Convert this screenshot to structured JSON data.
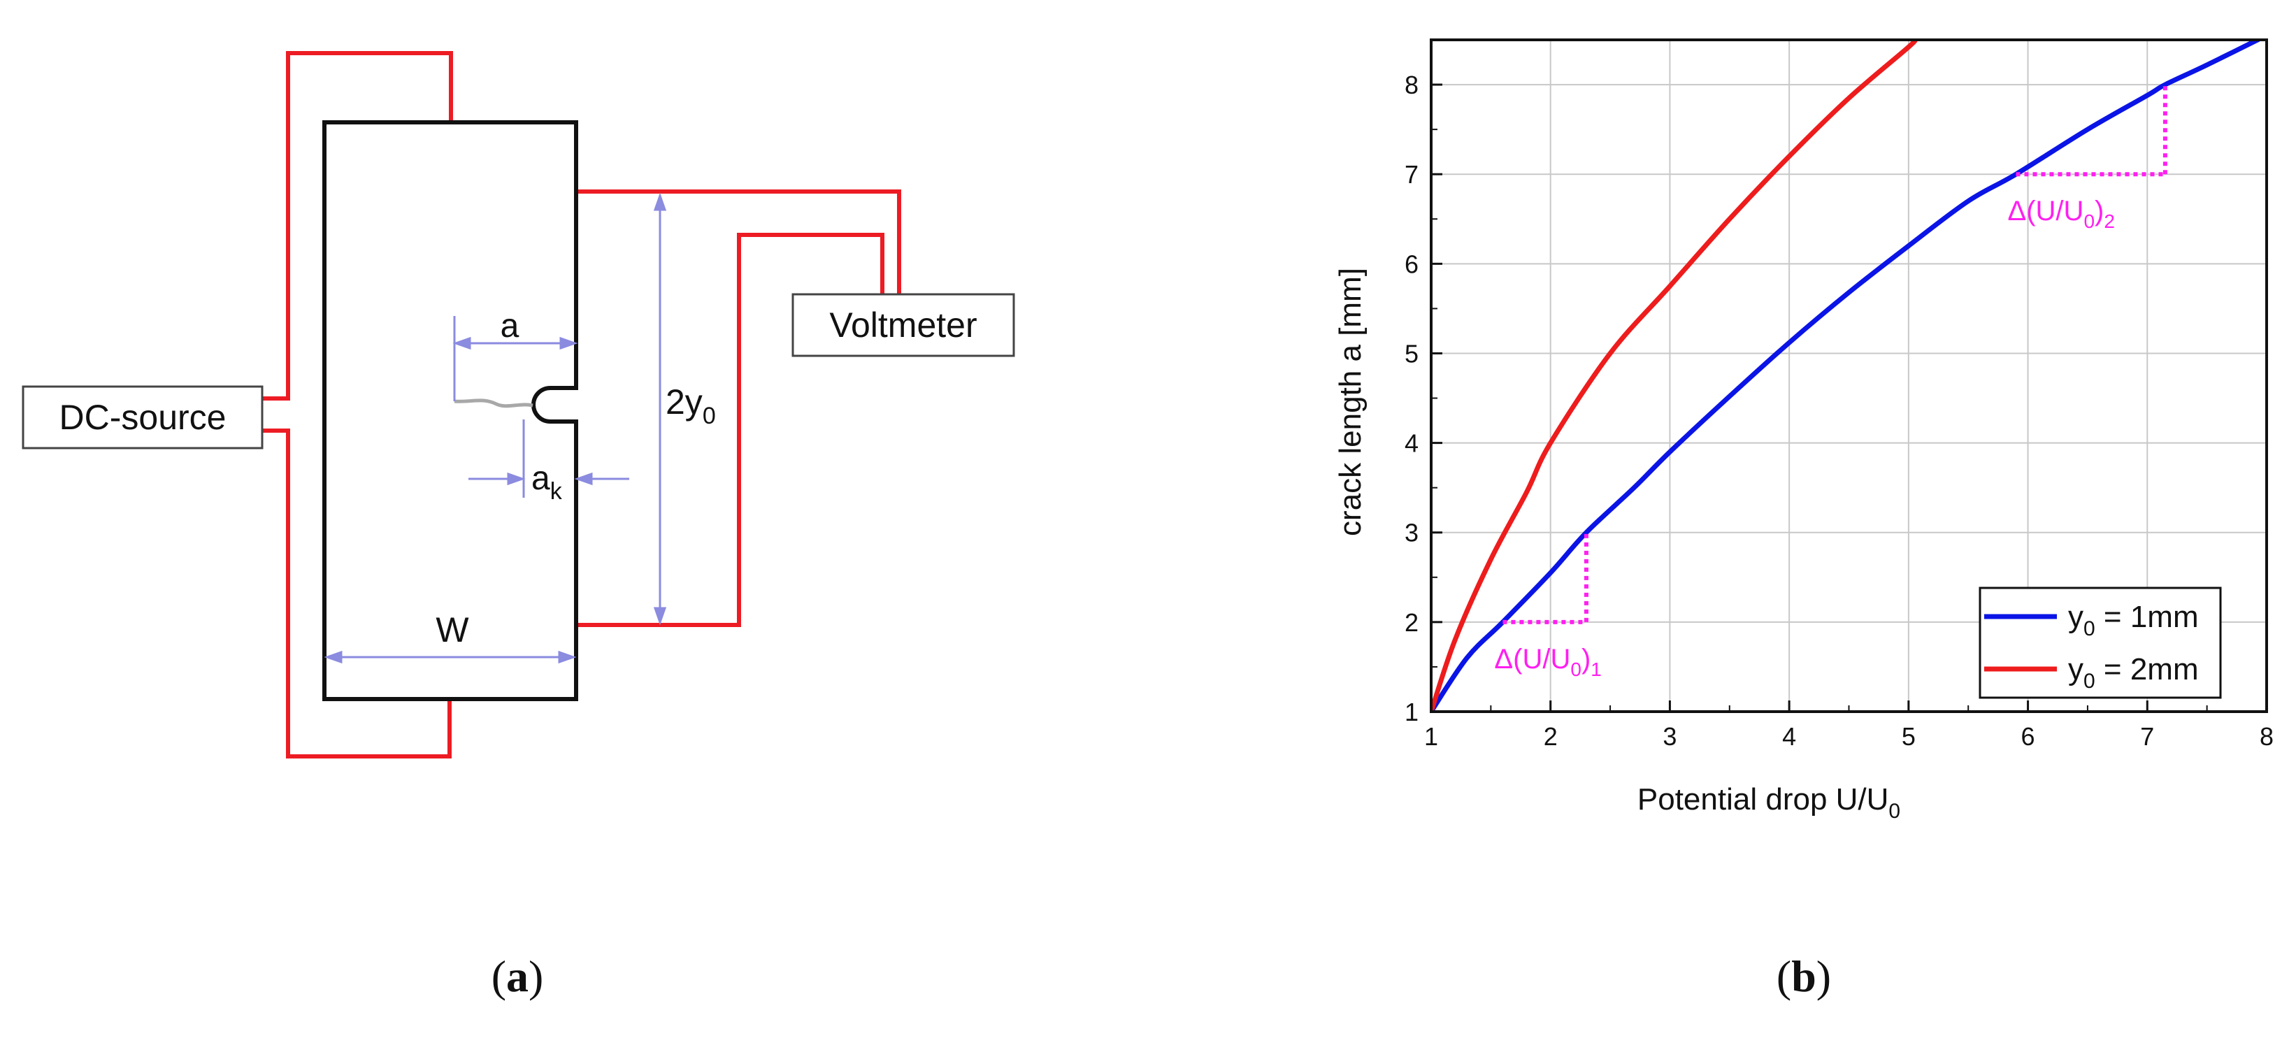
{
  "colors": {
    "wire": "#ed1c24",
    "dimension": "#8b8be0",
    "crack": "#a8a8a8",
    "blue_series": "#0a14e6",
    "red_series": "#ee1c1c",
    "delta_marker": "#ff1ff0",
    "grid": "#c8c8c8"
  },
  "panel_a": {
    "caption_open": "(",
    "caption_letter": "a",
    "caption_close": ")",
    "dc_source_label": "DC-source",
    "voltmeter_label": "Voltmeter",
    "crack_length_label": "a",
    "notch_depth_label": "a",
    "notch_depth_sub": "k",
    "probe_spacing_label": "2y",
    "probe_spacing_sub": "0",
    "width_label": "W"
  },
  "panel_b": {
    "caption_open": "(",
    "caption_letter": "b",
    "caption_close": ")"
  },
  "chart_data": {
    "type": "line",
    "xlabel": "Potential drop U/U",
    "xlabel_sub": "0",
    "ylabel": "crack length a [mm]",
    "xlim": [
      1,
      8
    ],
    "ylim": [
      1,
      8.5
    ],
    "grid": true,
    "legend_position": "bottom-right",
    "x_ticks": [
      1,
      2,
      3,
      4,
      5,
      6,
      7,
      8
    ],
    "y_ticks": [
      1,
      2,
      3,
      4,
      5,
      6,
      7,
      8
    ],
    "series": [
      {
        "name": "y0 = 1mm",
        "legend_prefix": "y",
        "legend_sub": "0",
        "legend_suffix": " = 1mm",
        "color": "#0a14e6",
        "x": [
          1.0,
          1.3,
          1.6,
          2.0,
          2.3,
          2.7,
          3.0,
          3.5,
          4.0,
          4.5,
          5.0,
          5.5,
          5.9,
          6.5,
          7.0,
          7.15,
          7.5,
          8.0
        ],
        "y": [
          1.0,
          1.6,
          2.0,
          2.55,
          3.0,
          3.5,
          3.9,
          4.52,
          5.12,
          5.68,
          6.2,
          6.7,
          7.0,
          7.5,
          7.88,
          8.0,
          8.22,
          8.55
        ]
      },
      {
        "name": "y0 = 2mm",
        "legend_prefix": "y",
        "legend_sub": "0",
        "legend_suffix": " = 2mm",
        "color": "#ee1c1c",
        "x": [
          1.0,
          1.2,
          1.5,
          1.8,
          2.0,
          2.5,
          3.0,
          3.5,
          4.0,
          4.5,
          5.0,
          5.05
        ],
        "y": [
          1.0,
          1.8,
          2.7,
          3.45,
          4.0,
          5.0,
          5.75,
          6.5,
          7.2,
          7.85,
          8.42,
          8.5
        ]
      }
    ],
    "annotations": [
      {
        "label": "Δ(U/U",
        "label_sub": "0",
        "label_close": ")",
        "label_index": "1",
        "x_from": 1.6,
        "x_to": 2.3,
        "y_from": 2.0,
        "y_to": 3.0
      },
      {
        "label": "Δ(U/U",
        "label_sub": "0",
        "label_close": ")",
        "label_index": "2",
        "x_from": 5.9,
        "x_to": 7.15,
        "y_from": 7.0,
        "y_to": 8.0
      }
    ]
  }
}
